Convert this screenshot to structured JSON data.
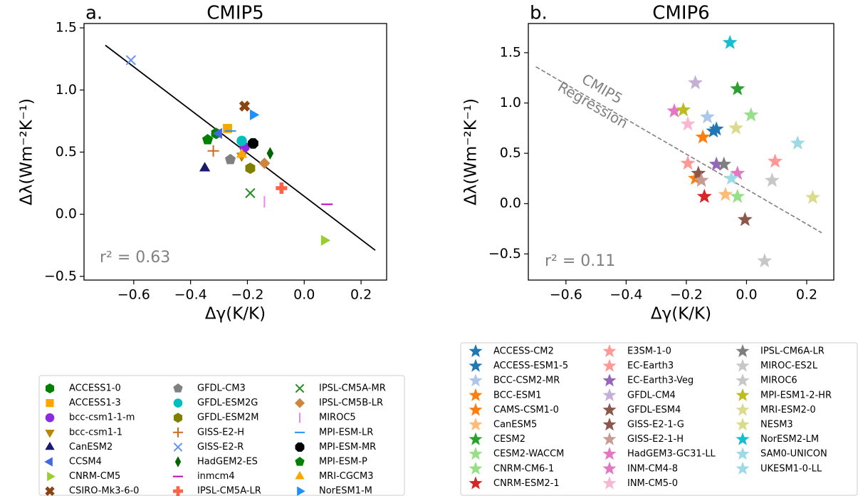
{
  "chart_data": [
    {
      "type": "scatter",
      "panel_label": "a.",
      "title": "CMIP5",
      "x_label": "Δγ(K/K)",
      "y_label": "Δλ(Wm⁻²K⁻¹)",
      "xlim": [
        -0.775,
        0.29
      ],
      "ylim": [
        -0.53,
        1.535
      ],
      "xticks": [
        {
          "value": -0.6,
          "label": "−0.6"
        },
        {
          "value": -0.4,
          "label": "−0.4"
        },
        {
          "value": -0.2,
          "label": "−0.2"
        },
        {
          "value": 0,
          "label": "0.0"
        },
        0.2
      ],
      "yticks": [
        {
          "value": -0.5,
          "label": "−0.5"
        },
        {
          "value": 0,
          "label": "0.0"
        },
        0.5,
        {
          "value": 1,
          "label": "1.0"
        },
        1.5
      ],
      "annotation": "r² = 0.63",
      "regression": {
        "x": [
          -0.7,
          0.25
        ],
        "values": [
          1.36,
          -0.29
        ],
        "color": "#000000",
        "style": "solid"
      },
      "legend": "below",
      "legend_columns": 3,
      "series": [
        {
          "name": "ACCESS1-0",
          "color": "#007f00",
          "marker": "h",
          "x": [
            -0.31
          ],
          "values": [
            0.65
          ]
        },
        {
          "name": "ACCESS1-3",
          "color": "#ffa500",
          "marker": "s",
          "x": [
            -0.27
          ],
          "values": [
            0.69
          ]
        },
        {
          "name": "bcc-csm1-1-m",
          "color": "#8a2be2",
          "marker": "o",
          "x": [
            -0.21
          ],
          "values": [
            0.54
          ]
        },
        {
          "name": "bcc-csm1-1",
          "color": "#b8860b",
          "marker": "v",
          "x": [
            -0.22
          ],
          "values": [
            0.47
          ]
        },
        {
          "name": "CanESM2",
          "color": "#191970",
          "marker": "^",
          "x": [
            -0.35
          ],
          "values": [
            0.37
          ]
        },
        {
          "name": "CCSM4",
          "color": "#4169e1",
          "marker": "<",
          "x": [
            -0.3
          ],
          "values": [
            0.65
          ]
        },
        {
          "name": "CNRM-CM5",
          "color": "#9acd32",
          "marker": ">",
          "x": [
            0.07
          ],
          "values": [
            -0.21
          ]
        },
        {
          "name": "CSIRO-Mk3-6-0",
          "color": "#8b4513",
          "marker": "X",
          "x": [
            -0.21
          ],
          "values": [
            0.87
          ]
        },
        {
          "name": "GFDL-CM3",
          "color": "#808080",
          "marker": "p",
          "x": [
            -0.26
          ],
          "values": [
            0.44
          ]
        },
        {
          "name": "GFDL-ESM2G",
          "color": "#00bfbf",
          "marker": "o",
          "x": [
            -0.22
          ],
          "values": [
            0.59
          ]
        },
        {
          "name": "GFDL-ESM2M",
          "color": "#808000",
          "marker": "h",
          "x": [
            -0.19
          ],
          "values": [
            0.37
          ]
        },
        {
          "name": "GISS-E2-H",
          "color": "#d2691e",
          "marker": "+",
          "x": [
            -0.32
          ],
          "values": [
            0.51
          ]
        },
        {
          "name": "GISS-E2-R",
          "color": "#6495ed",
          "marker": "x",
          "x": [
            -0.61
          ],
          "values": [
            1.24
          ]
        },
        {
          "name": "HadGEM2-ES",
          "color": "#006400",
          "marker": "d",
          "x": [
            -0.12
          ],
          "values": [
            0.49
          ]
        },
        {
          "name": "inmcm4",
          "color": "#c000c0",
          "marker": "_",
          "x": [
            0.08
          ],
          "values": [
            0.08
          ]
        },
        {
          "name": "IPSL-CM5A-LR",
          "color": "#ff6347",
          "marker": "P",
          "x": [
            -0.08
          ],
          "values": [
            0.21
          ]
        },
        {
          "name": "IPSL-CM5A-MR",
          "color": "#228b22",
          "marker": "x",
          "x": [
            -0.19
          ],
          "values": [
            0.17
          ]
        },
        {
          "name": "IPSL-CM5B-LR",
          "color": "#cd853f",
          "marker": "D",
          "x": [
            -0.14
          ],
          "values": [
            0.41
          ]
        },
        {
          "name": "MIROC5",
          "color": "#ee82ee",
          "marker": "|",
          "x": [
            -0.14
          ],
          "values": [
            0.1
          ]
        },
        {
          "name": "MPI-ESM-LR",
          "color": "#1e90ff",
          "marker": "_",
          "x": [
            -0.26
          ],
          "values": [
            0.67
          ]
        },
        {
          "name": "MPI-ESM-MR",
          "color": "#000000",
          "marker": "8",
          "x": [
            -0.18
          ],
          "values": [
            0.57
          ]
        },
        {
          "name": "MPI-ESM-P",
          "color": "#008000",
          "marker": "p",
          "x": [
            -0.34
          ],
          "values": [
            0.6
          ]
        },
        {
          "name": "MRI-CGCM3",
          "color": "#ffa500",
          "marker": "^",
          "x": [
            -0.22
          ],
          "values": [
            0.48
          ]
        },
        {
          "name": "NorESM1-M",
          "color": "#1e90ff",
          "marker": ">",
          "x": [
            -0.18
          ],
          "values": [
            0.8
          ]
        }
      ]
    },
    {
      "type": "scatter",
      "panel_label": "b.",
      "title": "CMIP6",
      "x_label": "Δγ(K/K)",
      "y_label": "Δλ(Wm⁻²K⁻¹)",
      "xlim": [
        -0.725,
        0.29
      ],
      "ylim": [
        -0.76,
        1.79
      ],
      "xticks": [
        {
          "value": -0.6,
          "label": "−0.6"
        },
        {
          "value": -0.4,
          "label": "−0.4"
        },
        {
          "value": -0.2,
          "label": "−0.2"
        },
        {
          "value": 0,
          "label": "0.0"
        },
        0.2
      ],
      "yticks": [
        {
          "value": -0.5,
          "label": "−0.5"
        },
        {
          "value": 0,
          "label": "0.0"
        },
        0.5,
        {
          "value": 1,
          "label": "1.0"
        },
        1.5
      ],
      "annotation": "r² = 0.11",
      "regression": {
        "x": [
          -0.7,
          0.25
        ],
        "values": [
          1.36,
          -0.29
        ],
        "color": "#808080",
        "style": "dashed",
        "label": [
          "CMIP5",
          "Regression"
        ]
      },
      "legend": "below",
      "legend_columns": 3,
      "series": [
        {
          "name": "ACCESS-CM2",
          "color": "#1f77b4",
          "marker": "*",
          "x": [
            -0.1
          ],
          "values": [
            0.74
          ]
        },
        {
          "name": "ACCESS-ESM1-5",
          "color": "#1f77b4",
          "marker": "*",
          "x": [
            -0.11
          ],
          "values": [
            0.72
          ]
        },
        {
          "name": "BCC-CSM2-MR",
          "color": "#aec7e8",
          "marker": "*",
          "x": [
            -0.13
          ],
          "values": [
            0.86
          ]
        },
        {
          "name": "BCC-ESM1",
          "color": "#ff7f0e",
          "marker": "*",
          "x": [
            -0.145
          ],
          "values": [
            0.66
          ]
        },
        {
          "name": "CAMS-CSM1-0",
          "color": "#ff7f0e",
          "marker": "*",
          "x": [
            -0.17
          ],
          "values": [
            0.25
          ]
        },
        {
          "name": "CanESM5",
          "color": "#ffbb78",
          "marker": "*",
          "x": [
            -0.07
          ],
          "values": [
            0.09
          ]
        },
        {
          "name": "CESM2",
          "color": "#2ca02c",
          "marker": "*",
          "x": [
            -0.03
          ],
          "values": [
            1.14
          ]
        },
        {
          "name": "CESM2-WACCM",
          "color": "#98df8a",
          "marker": "*",
          "x": [
            0.015
          ],
          "values": [
            0.88
          ]
        },
        {
          "name": "CNRM-CM6-1",
          "color": "#98df8a",
          "marker": "*",
          "x": [
            -0.03
          ],
          "values": [
            0.07
          ]
        },
        {
          "name": "CNRM-ESM2-1",
          "color": "#d62728",
          "marker": "*",
          "x": [
            -0.14
          ],
          "values": [
            0.07
          ]
        },
        {
          "name": "E3SM-1-0",
          "color": "#ff9896",
          "marker": "*",
          "x": [
            -0.195
          ],
          "values": [
            0.4
          ]
        },
        {
          "name": "EC-Earth3",
          "color": "#ff9896",
          "marker": "*",
          "x": [
            0.095
          ],
          "values": [
            0.42
          ]
        },
        {
          "name": "EC-Earth3-Veg",
          "color": "#9467bd",
          "marker": "*",
          "x": [
            -0.1
          ],
          "values": [
            0.39
          ]
        },
        {
          "name": "GFDL-CM4",
          "color": "#c5b0d5",
          "marker": "*",
          "x": [
            -0.17
          ],
          "values": [
            1.2
          ]
        },
        {
          "name": "GFDL-ESM4",
          "color": "#8c564b",
          "marker": "*",
          "x": [
            -0.005
          ],
          "values": [
            -0.16
          ]
        },
        {
          "name": "GISS-E2-1-G",
          "color": "#8c564b",
          "marker": "*",
          "x": [
            -0.16
          ],
          "values": [
            0.3
          ]
        },
        {
          "name": "GISS-E2-1-H",
          "color": "#c49c94",
          "marker": "*",
          "x": [
            -0.15
          ],
          "values": [
            0.23
          ]
        },
        {
          "name": "HadGEM3-GC31-LL",
          "color": "#e377c2",
          "marker": "*",
          "x": [
            -0.24
          ],
          "values": [
            0.92
          ]
        },
        {
          "name": "INM-CM4-8",
          "color": "#e377c2",
          "marker": "*",
          "x": [
            -0.03
          ],
          "values": [
            0.3
          ]
        },
        {
          "name": "INM-CM5-0",
          "color": "#f7b6d2",
          "marker": "*",
          "x": [
            -0.195
          ],
          "values": [
            0.79
          ]
        },
        {
          "name": "IPSL-CM6A-LR",
          "color": "#7f7f7f",
          "marker": "*",
          "x": [
            -0.075
          ],
          "values": [
            0.39
          ]
        },
        {
          "name": "MIROC-ES2L",
          "color": "#c7c7c7",
          "marker": "*",
          "x": [
            0.06
          ],
          "values": [
            -0.57
          ]
        },
        {
          "name": "MIROC6",
          "color": "#c7c7c7",
          "marker": "*",
          "x": [
            0.085
          ],
          "values": [
            0.23
          ]
        },
        {
          "name": "MPI-ESM1-2-HR",
          "color": "#bcbd22",
          "marker": "*",
          "x": [
            -0.21
          ],
          "values": [
            0.93
          ]
        },
        {
          "name": "MRI-ESM2-0",
          "color": "#dbdb8d",
          "marker": "*",
          "x": [
            -0.035
          ],
          "values": [
            0.75
          ]
        },
        {
          "name": "NESM3",
          "color": "#dbdb8d",
          "marker": "*",
          "x": [
            0.22
          ],
          "values": [
            0.06
          ]
        },
        {
          "name": "NorESM2-LM",
          "color": "#17becf",
          "marker": "*",
          "x": [
            -0.055
          ],
          "values": [
            1.6
          ]
        },
        {
          "name": "SAM0-UNICON",
          "color": "#9edae5",
          "marker": "*",
          "x": [
            0.17
          ],
          "values": [
            0.6
          ]
        },
        {
          "name": "UKESM1-0-LL",
          "color": "#9edae5",
          "marker": "*",
          "x": [
            -0.05
          ],
          "values": [
            0.25
          ]
        }
      ]
    }
  ]
}
